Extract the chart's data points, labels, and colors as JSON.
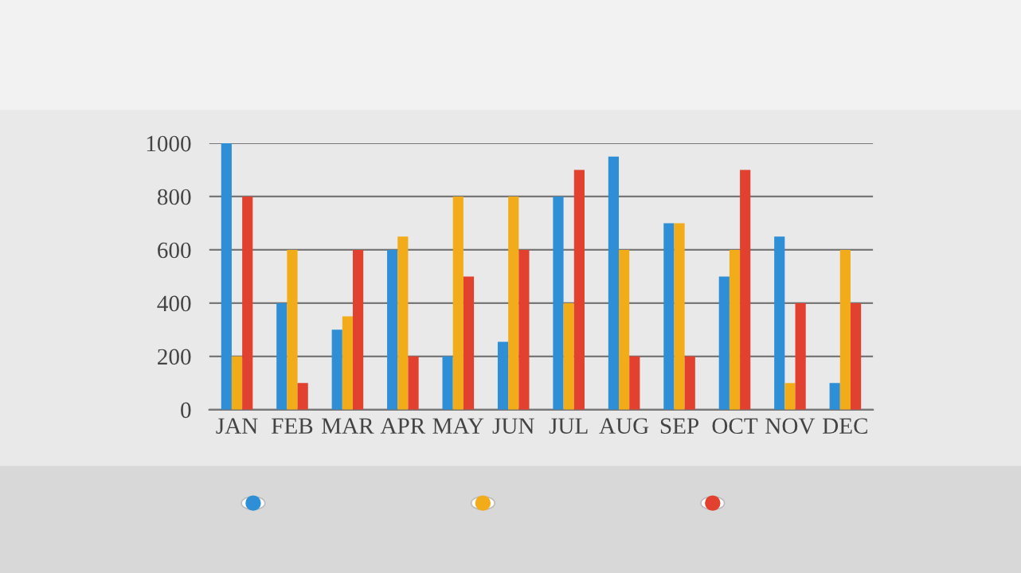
{
  "chart_data": {
    "type": "bar",
    "categories": [
      "JAN",
      "FEB",
      "MAR",
      "APR",
      "MAY",
      "JUN",
      "JUL",
      "AUG",
      "SEP",
      "OCT",
      "NOV",
      "DEC"
    ],
    "series": [
      {
        "color": "#2e8fd6",
        "values": [
          1000,
          400,
          300,
          600,
          200,
          255,
          800,
          950,
          700,
          500,
          650,
          100
        ]
      },
      {
        "color": "#f2ac1a",
        "values": [
          200,
          600,
          350,
          650,
          800,
          800,
          400,
          600,
          700,
          600,
          100,
          600
        ]
      },
      {
        "color": "#e2412f",
        "values": [
          800,
          100,
          600,
          200,
          500,
          600,
          900,
          200,
          200,
          900,
          400,
          400
        ]
      }
    ],
    "ylim": [
      0,
      1000
    ],
    "yticks": [
      0,
      200,
      400,
      600,
      800,
      1000
    ],
    "grid": "y"
  }
}
